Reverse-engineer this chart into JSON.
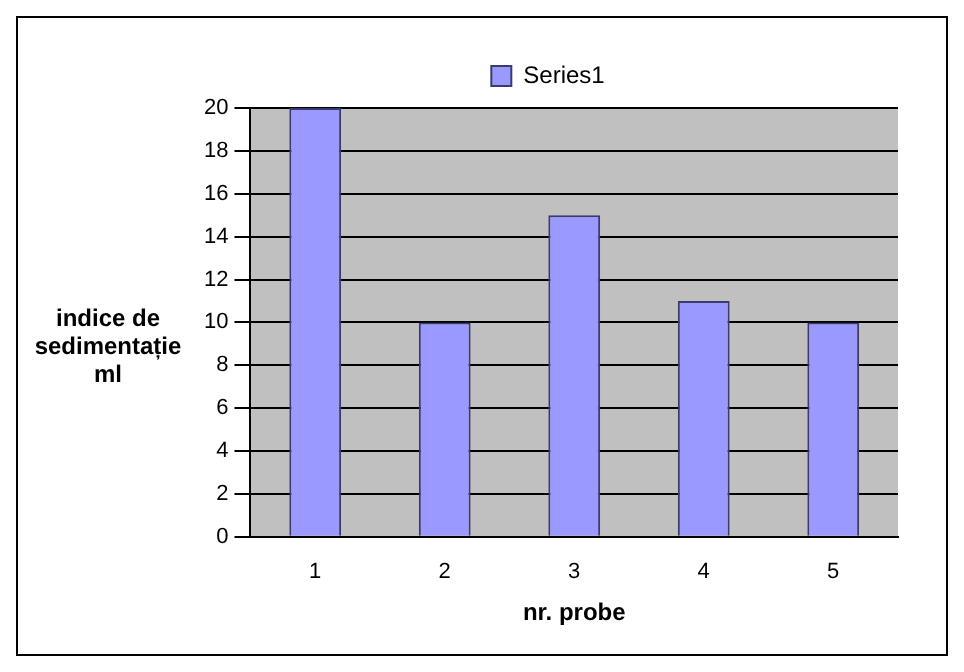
{
  "chart_data": {
    "type": "bar",
    "xlabel": "nr. probe",
    "ylabel": "indice de sedimentație ml",
    "categories": [
      "1",
      "2",
      "3",
      "4",
      "5"
    ],
    "series": [
      {
        "name": "Series1",
        "color": "#9999ff",
        "values": [
          20,
          10,
          15,
          11,
          10
        ]
      }
    ],
    "ylim": [
      0,
      20
    ],
    "yticks": [
      0,
      2,
      4,
      6,
      8,
      10,
      12,
      14,
      16,
      18,
      20
    ],
    "grid": "y",
    "legend": "top"
  }
}
